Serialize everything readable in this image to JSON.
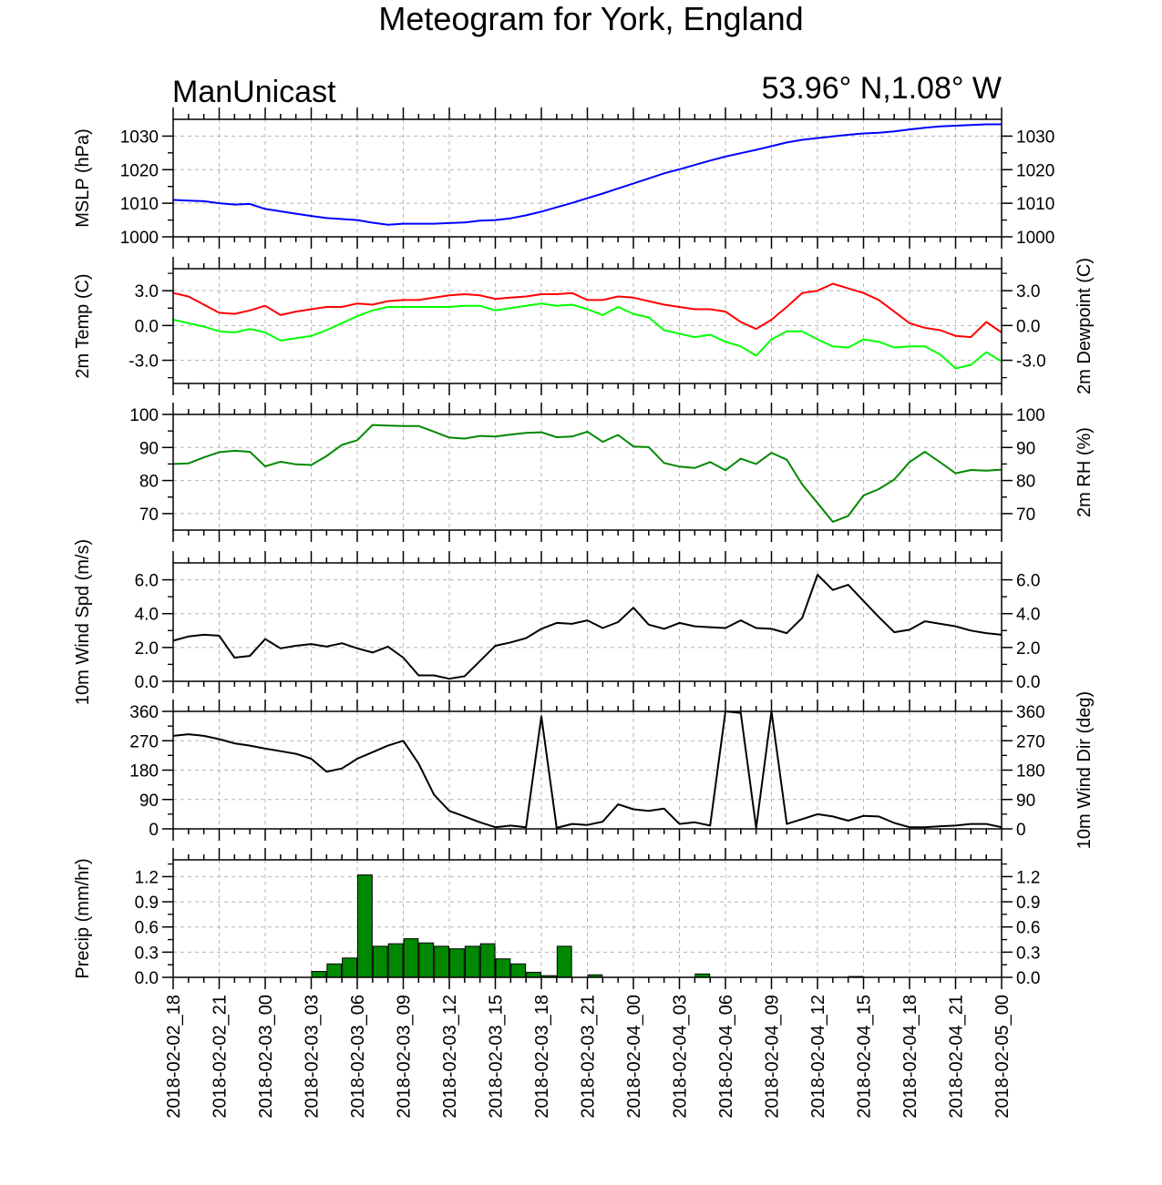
{
  "header": {
    "title": "Meteogram for York, England",
    "model": "ManUnicast",
    "location": "53.96° N,1.08° W"
  },
  "chart_data": {
    "type": "line",
    "time_labels": [
      "2018-02-02_18",
      "2018-02-02_21",
      "2018-02-03_00",
      "2018-02-03_03",
      "2018-02-03_06",
      "2018-02-03_09",
      "2018-02-03_12",
      "2018-02-03_15",
      "2018-02-03_18",
      "2018-02-03_21",
      "2018-02-04_00",
      "2018-02-04_03",
      "2018-02-04_06",
      "2018-02-04_09",
      "2018-02-04_12",
      "2018-02-04_15",
      "2018-02-04_18",
      "2018-02-04_21",
      "2018-02-05_00"
    ],
    "grid": "dashed",
    "panels": [
      {
        "id": "mslp",
        "type": "line",
        "ylabel_left": "MSLP (hPa)",
        "ylabel_right": "",
        "ylim": [
          1000,
          1035
        ],
        "ticks": [
          1000,
          1010,
          1020,
          1030
        ],
        "tick_labels": [
          "1000",
          "1010",
          "1020",
          "1030"
        ],
        "series": [
          {
            "color": "#0000ff",
            "x": [
              0,
              1,
              2,
              3,
              4,
              5,
              6,
              7,
              8,
              9,
              10,
              11,
              12,
              13,
              14,
              15,
              16,
              17,
              18,
              19,
              20,
              21,
              22,
              23,
              24,
              25,
              26,
              27,
              28,
              29,
              30,
              31,
              32,
              33,
              34,
              35,
              36,
              37,
              38,
              39,
              40,
              41,
              42,
              43,
              44,
              45,
              46,
              47,
              48,
              49,
              50,
              51,
              52,
              53,
              54
            ],
            "values": [
              1011,
              1010.8,
              1010.6,
              1010,
              1009.6,
              1009.8,
              1008.3,
              1007.6,
              1006.9,
              1006.2,
              1005.6,
              1005.3,
              1005,
              1004.2,
              1003.6,
              1003.9,
              1003.9,
              1003.9,
              1004.1,
              1004.3,
              1004.8,
              1005,
              1005.5,
              1006.4,
              1007.5,
              1008.8,
              1010.1,
              1011.5,
              1012.9,
              1014.4,
              1015.9,
              1017.4,
              1018.9,
              1020.1,
              1021.4,
              1022.7,
              1023.9,
              1024.9,
              1025.9,
              1027,
              1028.1,
              1028.9,
              1029.4,
              1029.9,
              1030.4,
              1030.8,
              1031,
              1031.4,
              1032,
              1032.5,
              1032.9,
              1033.1,
              1033.3,
              1033.5,
              1033.5
            ]
          }
        ]
      },
      {
        "id": "temp",
        "type": "line",
        "ylabel_left": "2m Temp (C)",
        "ylabel_right": "2m Dewpoint (C)",
        "ylim": [
          -5,
          4.9
        ],
        "ticks": [
          -3,
          0,
          3
        ],
        "tick_labels": [
          "-3.0",
          "0.0",
          "3.0"
        ],
        "series": [
          {
            "color": "#ff0000",
            "x": [
              0,
              1,
              2,
              3,
              4,
              5,
              6,
              7,
              8,
              9,
              10,
              11,
              12,
              13,
              14,
              15,
              16,
              17,
              18,
              19,
              20,
              21,
              22,
              23,
              24,
              25,
              26,
              27,
              28,
              29,
              30,
              31,
              32,
              33,
              34,
              35,
              36,
              37,
              38,
              39,
              40,
              41,
              42,
              43,
              44,
              45,
              46,
              47,
              48,
              49,
              50,
              51,
              52,
              53,
              54
            ],
            "values": [
              2.8,
              2.5,
              1.8,
              1.1,
              1,
              1.3,
              1.7,
              0.9,
              1.2,
              1.4,
              1.6,
              1.6,
              1.9,
              1.8,
              2.1,
              2.2,
              2.2,
              2.4,
              2.6,
              2.7,
              2.6,
              2.3,
              2.4,
              2.5,
              2.7,
              2.7,
              2.8,
              2.2,
              2.2,
              2.5,
              2.4,
              2.1,
              1.8,
              1.6,
              1.4,
              1.4,
              1.2,
              0.3,
              -0.3,
              0.5,
              1.6,
              2.8,
              3,
              3.6,
              3.2,
              2.8,
              2.2,
              1.2,
              0.2,
              -0.2,
              -0.4,
              -0.9,
              -1,
              0.3,
              -0.6
            ]
          },
          {
            "color": "#00ff00",
            "x": [
              0,
              1,
              2,
              3,
              4,
              5,
              6,
              7,
              8,
              9,
              10,
              11,
              12,
              13,
              14,
              15,
              16,
              17,
              18,
              19,
              20,
              21,
              22,
              23,
              24,
              25,
              26,
              27,
              28,
              29,
              30,
              31,
              32,
              33,
              34,
              35,
              36,
              37,
              38,
              39,
              40,
              41,
              42,
              43,
              44,
              45,
              46,
              47,
              48,
              49,
              50,
              51,
              52,
              53,
              54
            ],
            "values": [
              0.5,
              0.2,
              -0.1,
              -0.5,
              -0.6,
              -0.3,
              -0.6,
              -1.3,
              -1.1,
              -0.9,
              -0.4,
              0.2,
              0.8,
              1.3,
              1.6,
              1.6,
              1.6,
              1.6,
              1.6,
              1.7,
              1.7,
              1.3,
              1.5,
              1.7,
              1.9,
              1.7,
              1.8,
              1.4,
              0.9,
              1.6,
              1,
              0.7,
              -0.4,
              -0.7,
              -1,
              -0.8,
              -1.4,
              -1.8,
              -2.6,
              -1.2,
              -0.5,
              -0.5,
              -1.2,
              -1.8,
              -1.9,
              -1.2,
              -1.4,
              -1.9,
              -1.8,
              -1.8,
              -2.5,
              -3.7,
              -3.4,
              -2.3,
              -3.1
            ]
          }
        ]
      },
      {
        "id": "rh",
        "type": "line",
        "ylabel_left": "",
        "ylabel_right": "2m RH (%)",
        "ylim": [
          65,
          100
        ],
        "ticks": [
          70,
          80,
          90,
          100
        ],
        "tick_labels": [
          "70",
          "80",
          "90",
          "100"
        ],
        "series": [
          {
            "color": "#008800",
            "x": [
              0,
              1,
              2,
              3,
              4,
              5,
              6,
              7,
              8,
              9,
              10,
              11,
              12,
              13,
              14,
              15,
              16,
              17,
              18,
              19,
              20,
              21,
              22,
              23,
              24,
              25,
              26,
              27,
              28,
              29,
              30,
              31,
              32,
              33,
              34,
              35,
              36,
              37,
              38,
              39,
              40,
              41,
              42,
              43,
              44,
              45,
              46,
              47,
              48,
              49,
              50,
              51,
              52,
              53,
              54
            ],
            "values": [
              85,
              85.2,
              87,
              88.6,
              89,
              88.7,
              84.3,
              85.7,
              84.9,
              84.7,
              87.4,
              90.8,
              92.2,
              96.8,
              96.6,
              96.5,
              96.5,
              94.8,
              93,
              92.7,
              93.5,
              93.3,
              93.9,
              94.4,
              94.6,
              93.1,
              93.3,
              94.8,
              91.7,
              93.8,
              90.3,
              90.1,
              85.3,
              84.2,
              83.8,
              85.6,
              83.1,
              86.6,
              85,
              88.4,
              86.3,
              78.8,
              73.2,
              67.5,
              69.3,
              75.5,
              77.4,
              80.3,
              85.6,
              88.7,
              85.5,
              82.2,
              83.2,
              83,
              83.3
            ]
          }
        ]
      },
      {
        "id": "wspd",
        "type": "line",
        "ylabel_left": "10m Wind Spd (m/s)",
        "ylabel_right": "",
        "ylim": [
          0,
          7
        ],
        "ticks": [
          0,
          2,
          4,
          6
        ],
        "tick_labels": [
          "0.0",
          "2.0",
          "4.0",
          "6.0"
        ],
        "series": [
          {
            "color": "#000000",
            "x": [
              0,
              1,
              2,
              3,
              4,
              5,
              6,
              7,
              8,
              9,
              10,
              11,
              12,
              13,
              14,
              15,
              16,
              17,
              18,
              19,
              20,
              21,
              22,
              23,
              24,
              25,
              26,
              27,
              28,
              29,
              30,
              31,
              32,
              33,
              34,
              35,
              36,
              37,
              38,
              39,
              40,
              41,
              42,
              43,
              44,
              45,
              46,
              47,
              48,
              49,
              50,
              51,
              52,
              53,
              54
            ],
            "values": [
              2.4,
              2.65,
              2.75,
              2.7,
              1.4,
              1.5,
              2.5,
              1.95,
              2.1,
              2.2,
              2.05,
              2.25,
              1.95,
              1.7,
              2.05,
              1.4,
              0.35,
              0.35,
              0.15,
              0.3,
              1.2,
              2.1,
              2.3,
              2.55,
              3.1,
              3.45,
              3.4,
              3.6,
              3.15,
              3.5,
              4.35,
              3.35,
              3.1,
              3.45,
              3.25,
              3.2,
              3.15,
              3.6,
              3.15,
              3.1,
              2.85,
              3.75,
              6.3,
              5.4,
              5.7,
              4.75,
              3.8,
              2.9,
              3.05,
              3.55,
              3.4,
              3.25,
              3,
              2.85,
              2.75
            ]
          }
        ]
      },
      {
        "id": "wdir",
        "type": "line",
        "ylabel_left": "",
        "ylabel_right": "10m Wind Dir (deg)",
        "ylim": [
          0,
          360
        ],
        "ticks": [
          0,
          90,
          180,
          270,
          360
        ],
        "tick_labels": [
          "0",
          "90",
          "180",
          "270",
          "360"
        ],
        "series": [
          {
            "color": "#000000",
            "x": [
              0,
              1,
              2,
              3,
              4,
              5,
              6,
              7,
              8,
              9,
              10,
              11,
              12,
              13,
              14,
              15,
              16,
              17,
              18,
              19,
              20,
              21,
              22,
              23,
              24,
              25,
              26,
              27,
              28,
              29,
              30,
              31,
              32,
              33,
              34,
              35,
              36,
              37,
              38,
              39,
              40,
              41,
              42,
              43,
              44,
              45,
              46,
              47,
              48,
              49,
              50,
              51,
              52,
              53,
              54
            ],
            "values": [
              285,
              290,
              285,
              275,
              262,
              255,
              246,
              238,
              230,
              215,
              175,
              185,
              215,
              235,
              255,
              270,
              200,
              105,
              55,
              38,
              20,
              5,
              10,
              5,
              345,
              3,
              15,
              12,
              22,
              75,
              60,
              55,
              62,
              15,
              20,
              10,
              360,
              355,
              3,
              360,
              15,
              30,
              45,
              38,
              25,
              40,
              38,
              18,
              5,
              5,
              8,
              10,
              15,
              15,
              5
            ]
          }
        ]
      },
      {
        "id": "precip",
        "type": "bar",
        "ylabel_left": "Precip (mm/hr)",
        "ylabel_right": "",
        "ylim": [
          0,
          1.4
        ],
        "ticks": [
          0,
          0.3,
          0.6,
          0.9,
          1.2
        ],
        "tick_labels": [
          "0.0",
          "0.3",
          "0.6",
          "0.9",
          "1.2"
        ],
        "bar_color": "#008800",
        "series": [
          {
            "x": [
              9,
              10,
              11,
              12,
              13,
              14,
              15,
              16,
              17,
              18,
              19,
              20,
              21,
              22,
              23,
              24,
              25,
              27,
              34,
              44
            ],
            "values": [
              0.07,
              0.16,
              0.23,
              1.22,
              0.37,
              0.4,
              0.46,
              0.41,
              0.37,
              0.34,
              0.37,
              0.4,
              0.22,
              0.16,
              0.06,
              0.02,
              0.37,
              0.03,
              0.04,
              0.01
            ]
          }
        ]
      }
    ]
  }
}
